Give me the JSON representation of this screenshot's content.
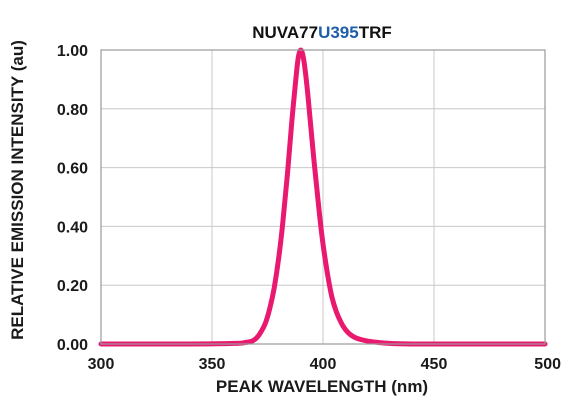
{
  "chart_data": {
    "type": "line",
    "title_parts": [
      {
        "text": "NUVA77",
        "color": "#111111"
      },
      {
        "text": "U395",
        "color": "#1f5ea8"
      },
      {
        "text": "TRF",
        "color": "#111111"
      }
    ],
    "xlabel": "PEAK WAVELENGTH (nm)",
    "ylabel": "RELATIVE EMISSION INTENSITY (au)",
    "xlim": [
      300,
      500
    ],
    "ylim": [
      0,
      1
    ],
    "x_ticks": [
      300,
      350,
      400,
      450,
      500
    ],
    "x_tick_labels": [
      "300",
      "350",
      "400",
      "450",
      "500"
    ],
    "y_ticks": [
      0,
      0.2,
      0.4,
      0.6,
      0.8,
      1.0
    ],
    "y_tick_labels": [
      "0.00",
      "0.20",
      "0.40",
      "0.60",
      "0.80",
      "1.00"
    ],
    "grid": true,
    "series": [
      {
        "color": "#e8196e",
        "x": [
          300,
          340,
          360,
          365,
          368,
          370,
          372,
          374,
          376,
          378,
          380,
          382,
          384,
          386,
          388,
          389,
          390,
          391,
          392,
          393,
          394,
          396,
          398,
          400,
          402,
          404,
          406,
          408,
          410,
          412,
          415,
          420,
          425,
          430,
          440,
          450,
          500
        ],
        "y": [
          0.0,
          0.0,
          0.002,
          0.005,
          0.01,
          0.02,
          0.04,
          0.07,
          0.12,
          0.19,
          0.29,
          0.42,
          0.58,
          0.76,
          0.92,
          0.98,
          1.0,
          0.98,
          0.93,
          0.86,
          0.78,
          0.62,
          0.47,
          0.34,
          0.24,
          0.16,
          0.11,
          0.075,
          0.05,
          0.034,
          0.02,
          0.01,
          0.005,
          0.002,
          0.0,
          0.0,
          0.0
        ]
      }
    ]
  }
}
